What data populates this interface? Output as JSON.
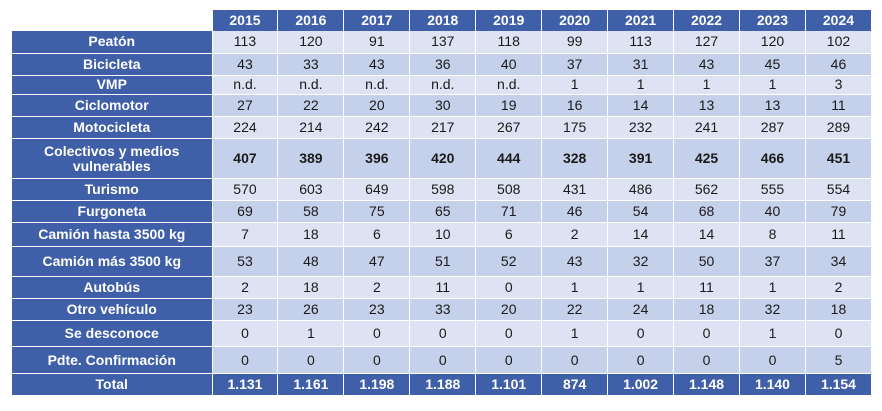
{
  "table": {
    "corner": "",
    "years": [
      "2015",
      "2016",
      "2017",
      "2018",
      "2019",
      "2020",
      "2021",
      "2022",
      "2023",
      "2024"
    ],
    "rows": [
      {
        "label": "Peatón",
        "values": [
          "113",
          "120",
          "91",
          "137",
          "118",
          "99",
          "113",
          "127",
          "120",
          "102"
        ]
      },
      {
        "label": "Bicicleta",
        "values": [
          "43",
          "33",
          "43",
          "36",
          "40",
          "37",
          "31",
          "43",
          "45",
          "46"
        ]
      },
      {
        "label": "VMP",
        "values": [
          "n.d.",
          "n.d.",
          "n.d.",
          "n.d.",
          "n.d.",
          "1",
          "1",
          "1",
          "1",
          "3"
        ]
      },
      {
        "label": "Ciclomotor",
        "values": [
          "27",
          "22",
          "20",
          "30",
          "19",
          "16",
          "14",
          "13",
          "13",
          "11"
        ]
      },
      {
        "label": "Motocicleta",
        "values": [
          "224",
          "214",
          "242",
          "217",
          "267",
          "175",
          "232",
          "241",
          "287",
          "289"
        ]
      },
      {
        "label": "Colectivos y medios vulnerables",
        "values": [
          "407",
          "389",
          "396",
          "420",
          "444",
          "328",
          "391",
          "425",
          "466",
          "451"
        ]
      },
      {
        "label": "Turismo",
        "values": [
          "570",
          "603",
          "649",
          "598",
          "508",
          "431",
          "486",
          "562",
          "555",
          "554"
        ]
      },
      {
        "label": "Furgoneta",
        "values": [
          "69",
          "58",
          "75",
          "65",
          "71",
          "46",
          "54",
          "68",
          "40",
          "79"
        ]
      },
      {
        "label": "Camión hasta 3500 kg",
        "values": [
          "7",
          "18",
          "6",
          "10",
          "6",
          "2",
          "14",
          "14",
          "8",
          "11"
        ]
      },
      {
        "label": "Camión más 3500 kg",
        "values": [
          "53",
          "48",
          "47",
          "51",
          "52",
          "43",
          "32",
          "50",
          "37",
          "34"
        ]
      },
      {
        "label": "Autobús",
        "values": [
          "2",
          "18",
          "2",
          "11",
          "0",
          "1",
          "1",
          "11",
          "1",
          "2"
        ]
      },
      {
        "label": "Otro vehículo",
        "values": [
          "23",
          "26",
          "23",
          "33",
          "20",
          "22",
          "24",
          "18",
          "32",
          "18"
        ]
      },
      {
        "label": "Se desconoce",
        "values": [
          "0",
          "1",
          "0",
          "0",
          "0",
          "1",
          "0",
          "0",
          "1",
          "0"
        ]
      },
      {
        "label": "Pdte. Confirmación",
        "values": [
          "0",
          "0",
          "0",
          "0",
          "0",
          "0",
          "0",
          "0",
          "0",
          "5"
        ]
      },
      {
        "label": "Total",
        "values": [
          "1.131",
          "1.161",
          "1.198",
          "1.188",
          "1.101",
          "874",
          "1.002",
          "1.148",
          "1.140",
          "1.154"
        ]
      }
    ]
  }
}
